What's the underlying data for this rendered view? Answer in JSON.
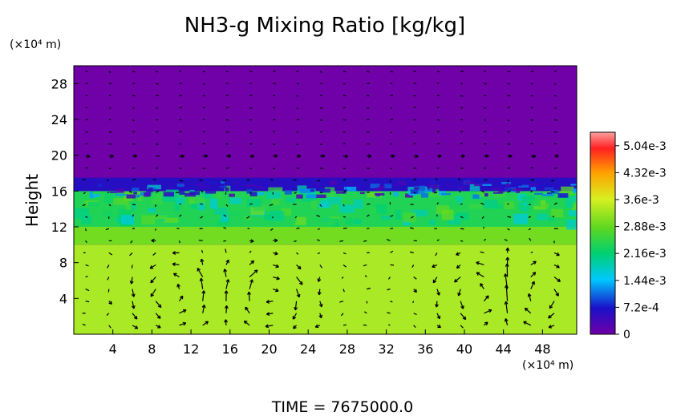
{
  "chart_data": {
    "type": "heatmap",
    "title": "NH3-g Mixing Ratio [kg/kg]",
    "ylabel": "Height",
    "y_unit": "(×10⁴ m)",
    "x_unit": "(×10⁴ m)",
    "xlim": [
      0,
      51.5
    ],
    "ylim": [
      0,
      30
    ],
    "x_ticks": [
      4,
      8,
      12,
      16,
      20,
      24,
      28,
      32,
      36,
      40,
      44,
      48
    ],
    "y_ticks": [
      4,
      8,
      12,
      16,
      20,
      24,
      28
    ],
    "colorbar": {
      "range": [
        0,
        0.0054
      ],
      "tick_values": [
        0,
        0.00072,
        0.00144,
        0.00216,
        0.00288,
        0.0036,
        0.00432,
        0.00504
      ],
      "tick_labels": [
        "0",
        "7.2e-4",
        "1.44e-3",
        "2.16e-3",
        "2.88e-3",
        "3.6e-3",
        "4.32e-3",
        "5.04e-3"
      ]
    },
    "field_summary": [
      {
        "height_range": [
          0,
          10
        ],
        "value": 0.0034
      },
      {
        "height_range": [
          10,
          12
        ],
        "value": 0.003
      },
      {
        "height_range": [
          12,
          16
        ],
        "value": 0.0024
      },
      {
        "height_range": [
          16,
          17.5
        ],
        "value": 0.0006
      },
      {
        "height_range": [
          17.5,
          30
        ],
        "value": 0.0
      }
    ],
    "circulation_cells_x_centers": [
      10,
      20,
      42,
      47
    ],
    "footer": "TIME = 7675000.0"
  },
  "colors": {
    "upper_layer": "#7000a8",
    "lower_layer": "#b7ef2a"
  }
}
